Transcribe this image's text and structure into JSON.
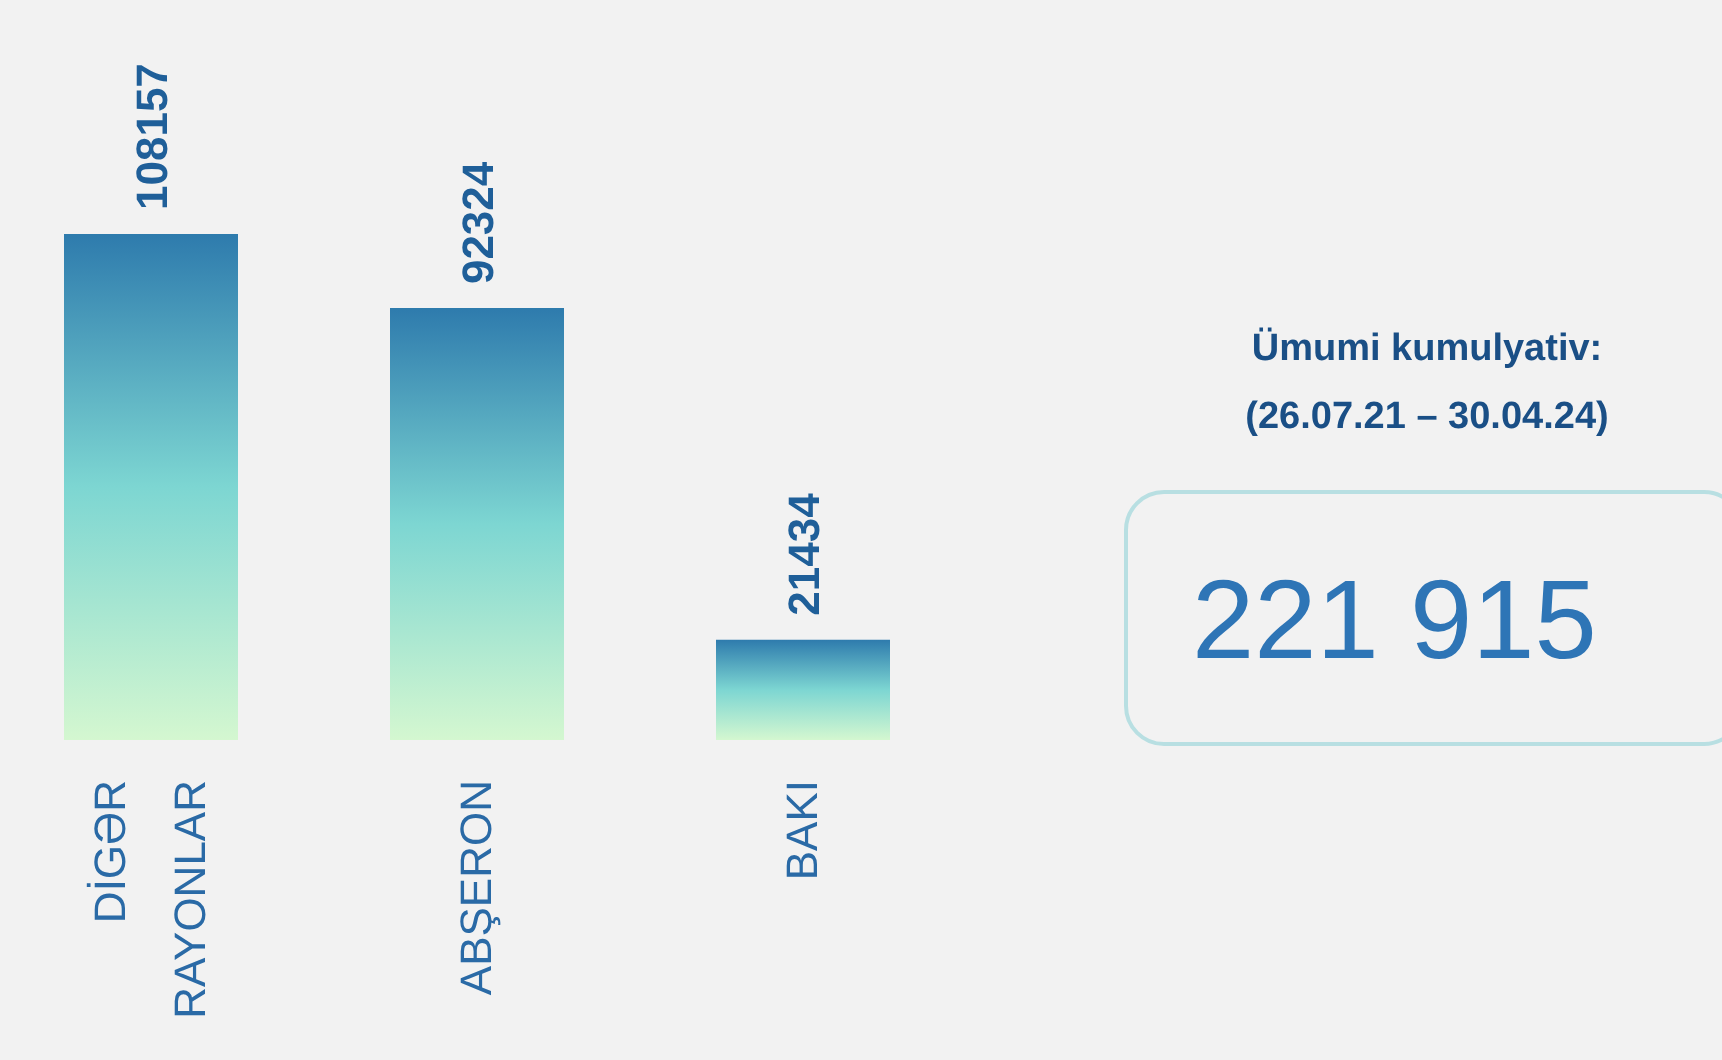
{
  "chart_data": {
    "type": "bar",
    "categories": [
      "DİGƏR RAYONLAR",
      "ABŞERON",
      "BAKI"
    ],
    "values": [
      108157,
      92324,
      21434
    ],
    "color": "#2e7bad",
    "data_labels": true,
    "annotations": [
      "Ümumi kumulyativ:",
      "(26.07.21 – 30.04.24)",
      "221 915"
    ]
  }
}
